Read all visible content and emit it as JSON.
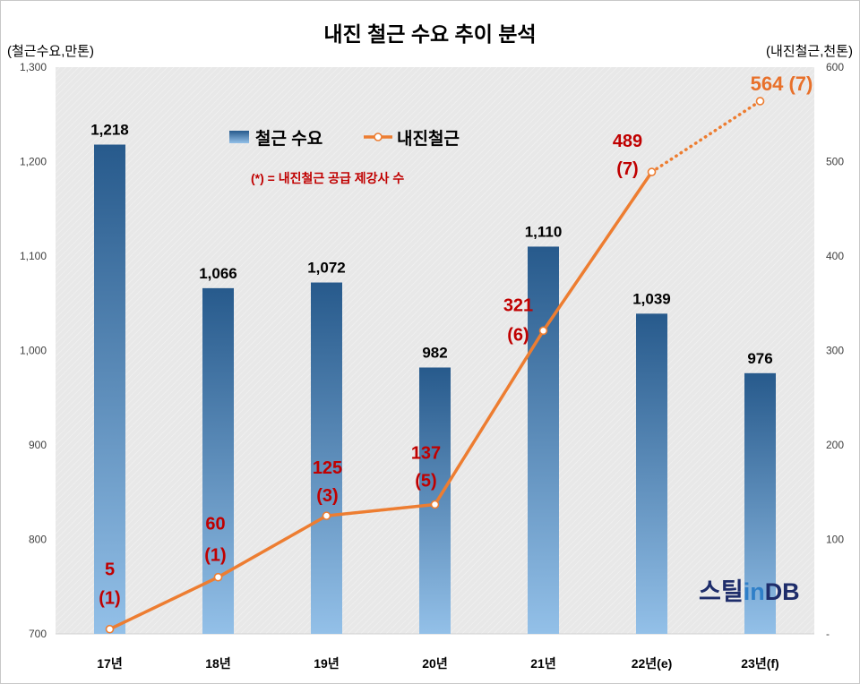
{
  "colors": {
    "bar_top": "#275A8C",
    "bar_bottom": "#93C0E8",
    "line": "#ED7D31",
    "label_red": "#C00000",
    "last_label": "#E8702A",
    "plot_bg": "#E8E8E8",
    "logo_navy": "#1E2D6B",
    "logo_blue": "#2F7FC8"
  },
  "logo": {
    "part1": "스틸",
    "part2": "in",
    "part3": "DB"
  },
  "chart_data": {
    "type": "bar",
    "title": "내진 철근 수요 추이 분석",
    "categories": [
      "17년",
      "18년",
      "19년",
      "20년",
      "21년",
      "22년(e)",
      "23년(f)"
    ],
    "ylabel": "(철근수요,만톤)",
    "y2label": "(내진철근,천톤)",
    "ylim": [
      700,
      1300
    ],
    "y2lim": [
      0,
      600
    ],
    "yticks": [
      "700",
      "800",
      "900",
      "1,000",
      "1,100",
      "1,200",
      "1,300"
    ],
    "y2ticks": [
      "-",
      "100",
      "200",
      "300",
      "400",
      "500",
      "600"
    ],
    "grid": false,
    "legend": "top-center",
    "annotation": "(*) = 내진철근 공급 제강사 수",
    "series": [
      {
        "name": "철근 수요",
        "type": "bar",
        "axis": "left",
        "values": [
          1218,
          1066,
          1072,
          982,
          1110,
          1039,
          976
        ],
        "labels": [
          "1,218",
          "1,066",
          "1,072",
          "982",
          "1,110",
          "1,039",
          "976"
        ]
      },
      {
        "name": "내진철근",
        "type": "line",
        "axis": "right",
        "values": [
          5,
          60,
          125,
          137,
          321,
          489,
          564
        ],
        "labels": [
          [
            "5",
            "(1)"
          ],
          [
            "60",
            "(1)"
          ],
          [
            "125",
            "(3)"
          ],
          [
            "137",
            "(5)"
          ],
          [
            "321",
            "(6)"
          ],
          [
            "489",
            "(7)"
          ],
          [
            "564 (7)"
          ]
        ],
        "last_segment": "dotted"
      }
    ]
  }
}
